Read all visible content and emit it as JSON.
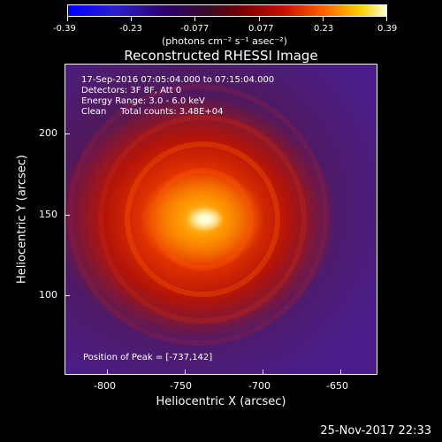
{
  "colorbar": {
    "labels": [
      "-0.39",
      "-0.23",
      "-0.077",
      "0.077",
      "0.23",
      "0.39"
    ],
    "units_html_text": "(photons cm⁻² s⁻¹ asec⁻²)"
  },
  "title": "Reconstructed RHESSI Image",
  "annotation": {
    "line1": "17-Sep-2016 07:05:04.000 to 07:15:04.000",
    "line2": "Detectors: 3F 8F, Att 0",
    "line3": "Energy Range: 3.0 - 6.0 keV",
    "line4": "Clean     Total counts: 3.48E+04",
    "peak": "Position of Peak = [-737,142]"
  },
  "axes": {
    "ylabel": "Heliocentric Y (arcsec)",
    "xlabel": "Heliocentric X (arcsec)",
    "yticks": [
      "200",
      "150",
      "100"
    ],
    "xticks": [
      "-800",
      "-750",
      "-700",
      "-650"
    ]
  },
  "footer": "25-Nov-2017 22:33"
}
